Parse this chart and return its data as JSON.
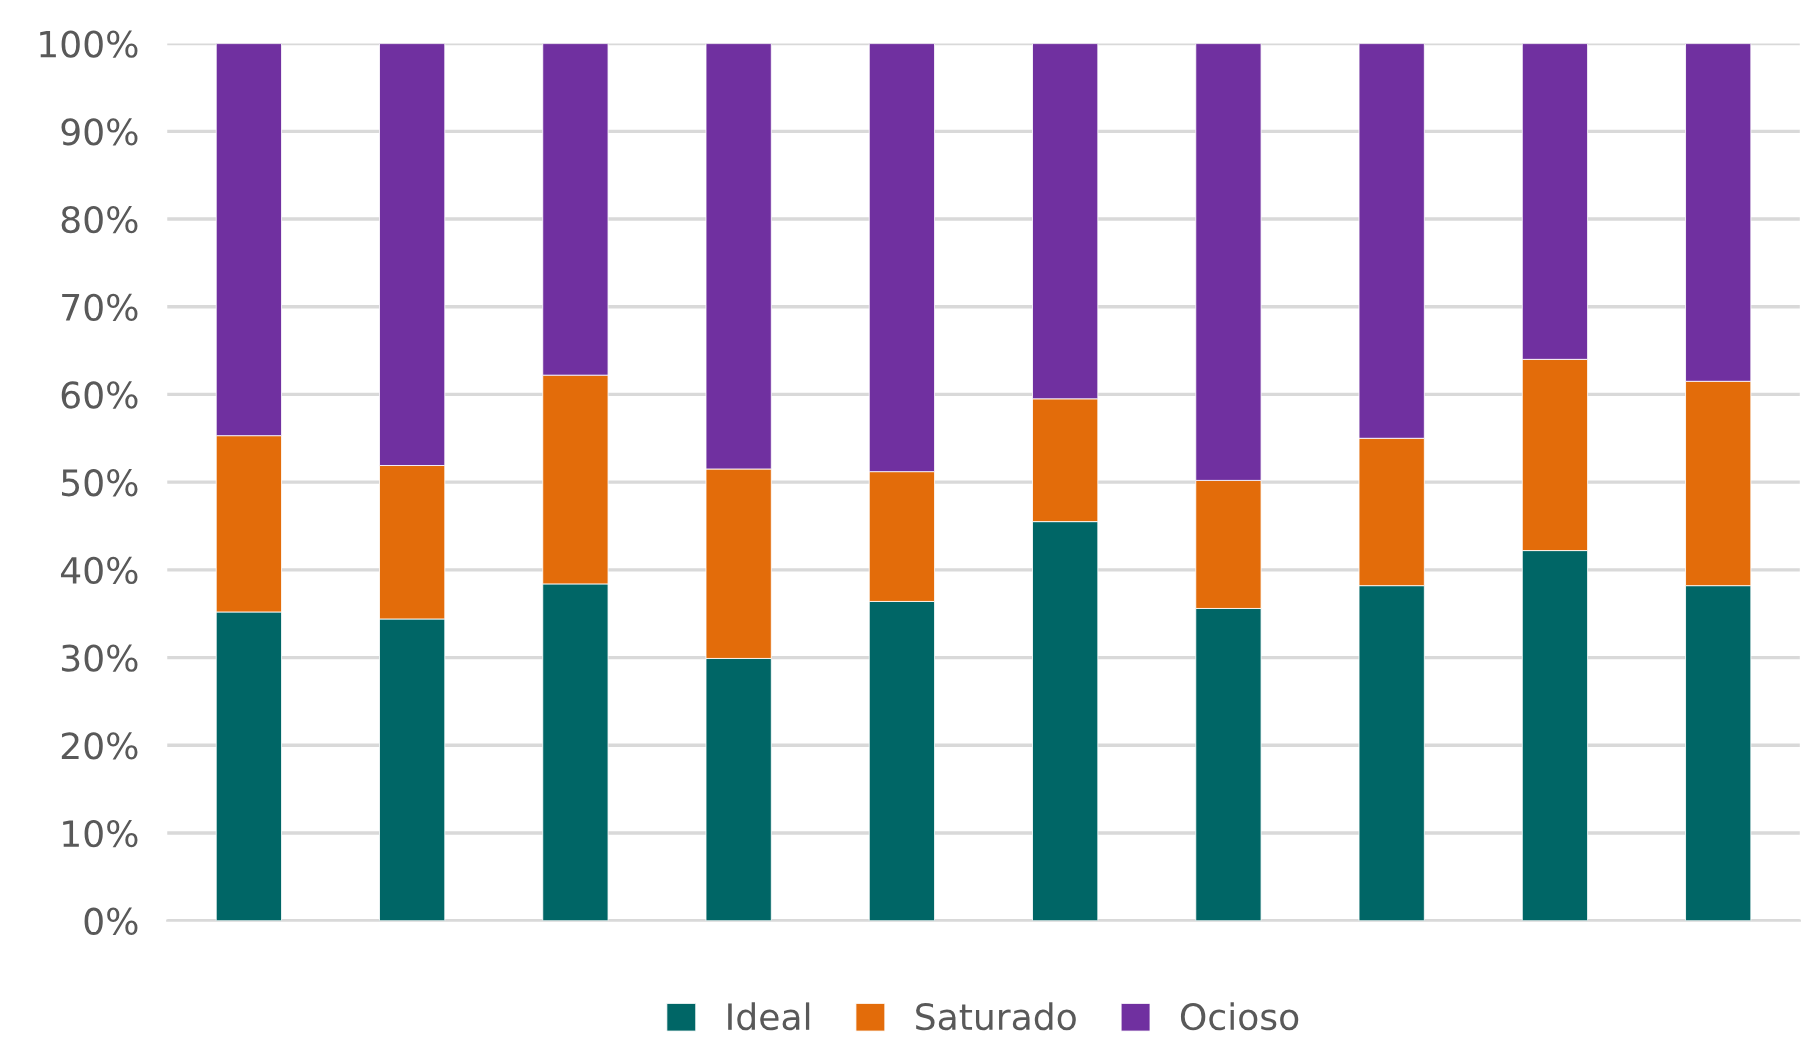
{
  "chart_data": {
    "type": "bar",
    "stacked": true,
    "categories": [
      null,
      null,
      null,
      null,
      null,
      null,
      null,
      null,
      null,
      null
    ],
    "series": [
      {
        "name": "Ideal",
        "color": "#006666",
        "values": [
          35.2,
          34.4,
          38.4,
          29.9,
          36.4,
          45.5,
          35.6,
          38.2,
          42.2,
          38.2
        ]
      },
      {
        "name": "Saturado",
        "color": "#e36c0a",
        "values": [
          20.1,
          17.5,
          23.8,
          21.6,
          14.8,
          14.0,
          14.6,
          16.8,
          21.8,
          23.3
        ]
      },
      {
        "name": "Ocioso",
        "color": "#7030a0",
        "values": [
          44.7,
          48.1,
          37.8,
          48.5,
          48.8,
          40.5,
          49.8,
          45.0,
          36.0,
          38.5
        ]
      }
    ],
    "ylim": [
      0,
      100
    ],
    "yticks": [
      {
        "value": 0,
        "label": "0%"
      },
      {
        "value": 10,
        "label": "10%"
      },
      {
        "value": 20,
        "label": "20%"
      },
      {
        "value": 30,
        "label": "30%"
      },
      {
        "value": 40,
        "label": "40%"
      },
      {
        "value": 50,
        "label": "50%"
      },
      {
        "value": 60,
        "label": "60%"
      },
      {
        "value": 70,
        "label": "70%"
      },
      {
        "value": 80,
        "label": "80%"
      },
      {
        "value": 90,
        "label": "90%"
      },
      {
        "value": 100,
        "label": "100%"
      }
    ],
    "grid": "y",
    "legend": "bottom",
    "tick_labels": "y"
  }
}
